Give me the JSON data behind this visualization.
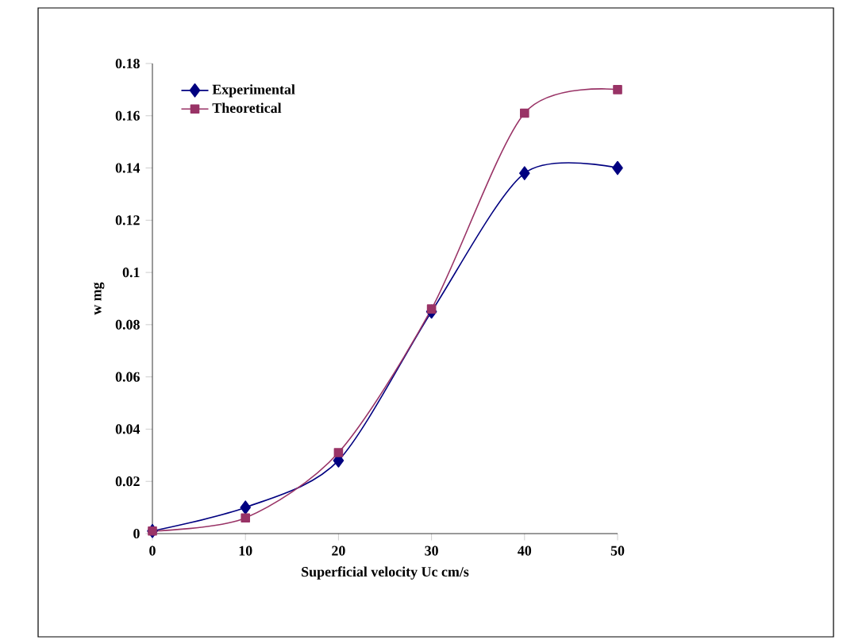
{
  "chart_data": {
    "type": "line",
    "xlabel": "Superficial velocity Uc cm/s",
    "ylabel": "w mg",
    "x": [
      0,
      10,
      20,
      30,
      40,
      50
    ],
    "series": [
      {
        "name": "Experimental",
        "color": "#000080",
        "marker": "diamond",
        "values": [
          0.001,
          0.01,
          0.028,
          0.085,
          0.138,
          0.14
        ]
      },
      {
        "name": "Theoretical",
        "color": "#993366",
        "marker": "square",
        "values": [
          0.001,
          0.006,
          0.031,
          0.086,
          0.161,
          0.17
        ]
      }
    ],
    "xlim": [
      0,
      50
    ],
    "ylim": [
      0,
      0.18
    ],
    "xticks": [
      0,
      10,
      20,
      30,
      40,
      50
    ],
    "yticks": [
      0,
      0.02,
      0.04,
      0.06,
      0.08,
      0.1,
      0.12,
      0.14,
      0.16,
      0.18
    ],
    "grid": false,
    "legend": "top left",
    "line_style": "solid"
  }
}
